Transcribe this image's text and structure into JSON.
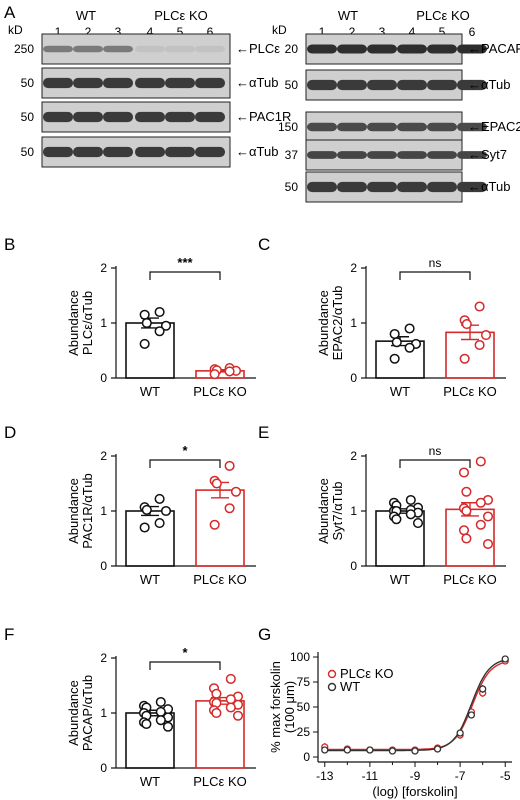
{
  "figure": {
    "panels": {
      "A": "A",
      "B": "B",
      "C": "C",
      "D": "D",
      "E": "E",
      "F": "F",
      "G": "G"
    },
    "blot_left": {
      "kd_label": "kD",
      "groups": [
        "WT",
        "PLCε KO"
      ],
      "lanes": [
        "1",
        "2",
        "3",
        "4",
        "5",
        "6"
      ],
      "strips": [
        {
          "name": "PLCε",
          "marker": "250"
        },
        {
          "name": "αTub",
          "marker": "50"
        },
        {
          "name": "PAC1R",
          "marker": "50"
        },
        {
          "name": "αTub",
          "marker": "50"
        }
      ]
    },
    "blot_right": {
      "kd_label": "kD",
      "groups": [
        "WT",
        "PLCε KO"
      ],
      "lanes": [
        "1",
        "2",
        "3",
        "4",
        "5",
        "6"
      ],
      "strips": [
        {
          "name": "PACAP",
          "marker": "20"
        },
        {
          "name": "αTub",
          "marker": "50"
        },
        {
          "name": "EPAC2",
          "marker": "150"
        },
        {
          "name": "Syt7",
          "marker": "37"
        },
        {
          "name": "αTub",
          "marker": "50"
        }
      ]
    }
  },
  "chart_data": [
    {
      "panel": "B",
      "type": "bar",
      "ylabel": [
        "Abundance",
        "PLCε/αTub"
      ],
      "ylim": [
        0,
        2
      ],
      "yticks": [
        0,
        1,
        2
      ],
      "categories": [
        "WT",
        "PLCε KO"
      ],
      "values": [
        1.0,
        0.13
      ],
      "sem": [
        0.09,
        0.02
      ],
      "points": [
        [
          1.2,
          1.15,
          1.0,
          0.95,
          0.85,
          0.62
        ],
        [
          0.18,
          0.16,
          0.14,
          0.13,
          0.12,
          0.07
        ]
      ],
      "significance": "***",
      "colors": [
        "#111111",
        "#d42a2a"
      ]
    },
    {
      "panel": "C",
      "type": "bar",
      "ylabel": [
        "Abundance",
        "EPAC2/αTub"
      ],
      "ylim": [
        0,
        2
      ],
      "yticks": [
        0,
        1,
        2
      ],
      "categories": [
        "WT",
        "PLCε KO"
      ],
      "values": [
        0.67,
        0.83
      ],
      "sem": [
        0.08,
        0.13
      ],
      "points": [
        [
          0.9,
          0.8,
          0.65,
          0.62,
          0.55,
          0.35
        ],
        [
          1.3,
          1.05,
          0.98,
          0.78,
          0.6,
          0.35
        ]
      ],
      "significance": "ns",
      "colors": [
        "#111111",
        "#d42a2a"
      ]
    },
    {
      "panel": "D",
      "type": "bar",
      "ylabel": [
        "Abundance",
        "PAC1R/αTub"
      ],
      "ylim": [
        0,
        2
      ],
      "yticks": [
        0,
        1,
        2
      ],
      "categories": [
        "WT",
        "PLCε KO"
      ],
      "values": [
        1.0,
        1.38
      ],
      "sem": [
        0.08,
        0.14
      ],
      "points": [
        [
          1.22,
          1.07,
          1.02,
          1.0,
          0.78,
          0.7
        ],
        [
          1.82,
          1.55,
          1.5,
          1.35,
          1.05,
          0.75
        ]
      ],
      "significance": "*",
      "colors": [
        "#111111",
        "#d42a2a"
      ]
    },
    {
      "panel": "E",
      "type": "bar",
      "ylabel": [
        "Abundance",
        "Syt7/αTub"
      ],
      "ylim": [
        0,
        2
      ],
      "yticks": [
        0,
        1,
        2
      ],
      "categories": [
        "WT",
        "PLCε KO"
      ],
      "values": [
        1.0,
        1.03
      ],
      "sem": [
        0.04,
        0.12
      ],
      "points": [
        [
          1.2,
          1.15,
          1.1,
          1.06,
          1.02,
          1.0,
          1.0,
          0.97,
          0.94,
          0.9,
          0.85,
          0.78
        ],
        [
          1.9,
          1.7,
          1.35,
          1.2,
          1.15,
          1.05,
          1.0,
          0.9,
          0.75,
          0.65,
          0.5,
          0.4
        ]
      ],
      "significance": "ns",
      "colors": [
        "#111111",
        "#d42a2a"
      ]
    },
    {
      "panel": "F",
      "type": "bar",
      "ylabel": [
        "Abundance",
        "PACAP/αTub"
      ],
      "ylim": [
        0,
        2
      ],
      "yticks": [
        0,
        1,
        2
      ],
      "categories": [
        "WT",
        "PLCε KO"
      ],
      "values": [
        1.0,
        1.22
      ],
      "sem": [
        0.05,
        0.06
      ],
      "points": [
        [
          1.2,
          1.13,
          1.1,
          1.07,
          1.02,
          1.0,
          0.95,
          0.92,
          0.87,
          0.83,
          0.8,
          0.75
        ],
        [
          1.62,
          1.45,
          1.35,
          1.3,
          1.25,
          1.2,
          1.18,
          1.15,
          1.1,
          1.05,
          1.0,
          0.95
        ]
      ],
      "significance": "*",
      "colors": [
        "#111111",
        "#d42a2a"
      ]
    },
    {
      "panel": "G",
      "type": "line",
      "xlabel": "(log) [forskolin]",
      "ylabel": [
        "% max forskolin",
        "(100 μm)"
      ],
      "xlim": [
        -13.3,
        -4.7
      ],
      "ylim": [
        -5,
        105
      ],
      "xticks": [
        -13,
        -11,
        -9,
        -7,
        -5
      ],
      "yticks": [
        0,
        25,
        50,
        75,
        100
      ],
      "legend": {
        "placement": "top-left"
      },
      "series": [
        {
          "name": "PLCε KO",
          "color": "#d42a2a",
          "x": [
            -13,
            -12,
            -11,
            -10,
            -9,
            -8,
            -7,
            -6.5,
            -6,
            -5
          ],
          "y": [
            10,
            8,
            7,
            7,
            7,
            9,
            22,
            45,
            64,
            96
          ],
          "err": [
            4,
            3,
            3,
            2,
            2,
            3,
            4,
            4,
            4,
            3
          ]
        },
        {
          "name": "WT",
          "color": "#333333",
          "x": [
            -13,
            -12,
            -11,
            -10,
            -9,
            -8,
            -7,
            -6.5,
            -6,
            -5
          ],
          "y": [
            7,
            7,
            7,
            6,
            6,
            8,
            24,
            42,
            68,
            98
          ],
          "err": [
            2,
            2,
            2,
            2,
            2,
            2,
            3,
            3,
            4,
            3
          ]
        }
      ]
    }
  ]
}
